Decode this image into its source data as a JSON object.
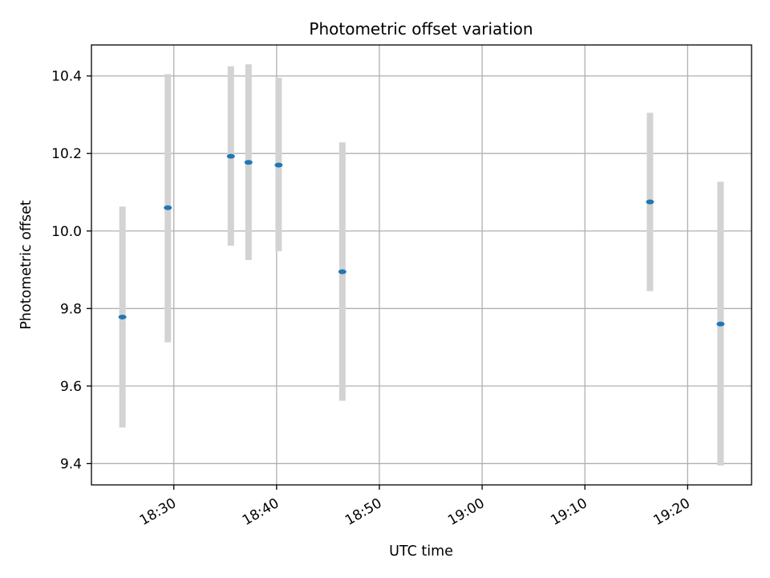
{
  "chart_data": {
    "type": "scatter",
    "title": "Photometric offset variation",
    "xlabel": "UTC time",
    "ylabel": "Photometric offset",
    "x_ticks": [
      "18:30",
      "18:40",
      "18:50",
      "19:00",
      "19:10",
      "19:20"
    ],
    "y_ticks": [
      "9.4",
      "9.6",
      "9.8",
      "10.0",
      "10.2",
      "10.4"
    ],
    "xlim": [
      "18:21:59",
      "19:26:13"
    ],
    "ylim": [
      9.345,
      10.48
    ],
    "grid": true,
    "colors": {
      "point": "#1f77b4",
      "error_bar": "#d3d3d3",
      "grid": "#b0b0b0",
      "axes": "#000000"
    },
    "points": [
      {
        "x": "18:25:00",
        "y": 9.778,
        "err_low": 9.493,
        "err_high": 10.063
      },
      {
        "x": "18:29:25",
        "y": 10.06,
        "err_low": 9.713,
        "err_high": 10.405
      },
      {
        "x": "18:35:33",
        "y": 10.193,
        "err_low": 9.962,
        "err_high": 10.425
      },
      {
        "x": "18:37:16",
        "y": 10.177,
        "err_low": 9.925,
        "err_high": 10.43
      },
      {
        "x": "18:40:12",
        "y": 10.17,
        "err_low": 9.948,
        "err_high": 10.395
      },
      {
        "x": "18:46:24",
        "y": 9.895,
        "err_low": 9.562,
        "err_high": 10.229
      },
      {
        "x": "19:16:20",
        "y": 10.075,
        "err_low": 9.845,
        "err_high": 10.305
      },
      {
        "x": "19:23:12",
        "y": 9.76,
        "err_low": 9.395,
        "err_high": 10.127
      }
    ]
  }
}
